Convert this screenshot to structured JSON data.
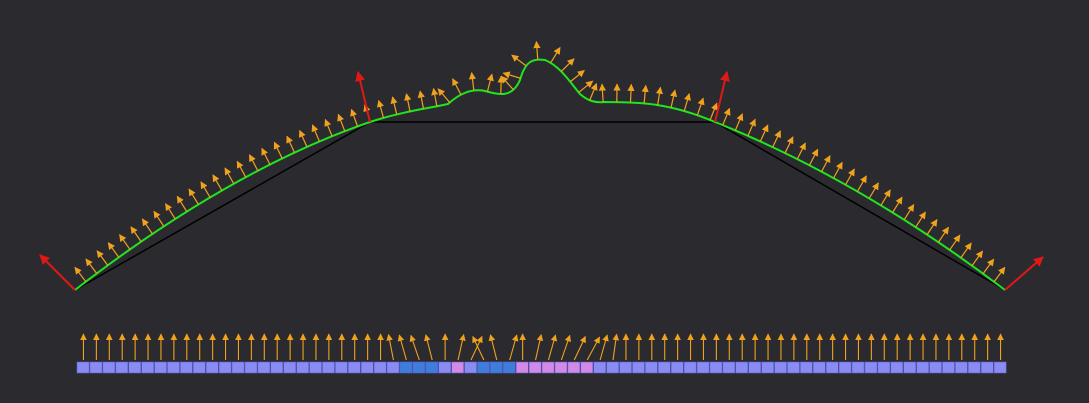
{
  "colors": {
    "background": "#2b2b2f",
    "curve": "#1ee61e",
    "control_polygon": "#000000",
    "normal_arrow": "#f0a21c",
    "endpoint_normal_arrow": "#e01818",
    "sample_cell_default": "#8a8cf4",
    "sample_cell_blue": "#3e7ddc",
    "sample_cell_pink": "#d28ae6",
    "sample_cell_border": "#5a5cc8"
  },
  "icons": {
    "normal_arrow": "arrow-icon",
    "endpoint_normal_arrow": "arrow-icon"
  },
  "sample_strip": {
    "count": 72,
    "highlighted_cells": {
      "blue": [
        25,
        26,
        27,
        31,
        32,
        33
      ],
      "pink": [
        29,
        34,
        35,
        36,
        37,
        38,
        39
      ]
    },
    "tilted_arrows": {
      "24": -0.35,
      "25": -0.5,
      "26": -0.6,
      "27": -0.45,
      "29": 0.4,
      "30": 0.8,
      "31": -0.8,
      "32": -0.45,
      "33": 0.5,
      "35": 0.4,
      "36": 0.5,
      "37": 0.6,
      "38": 0.8,
      "39": 0.9,
      "40": 0.5,
      "41": 0.25
    }
  }
}
